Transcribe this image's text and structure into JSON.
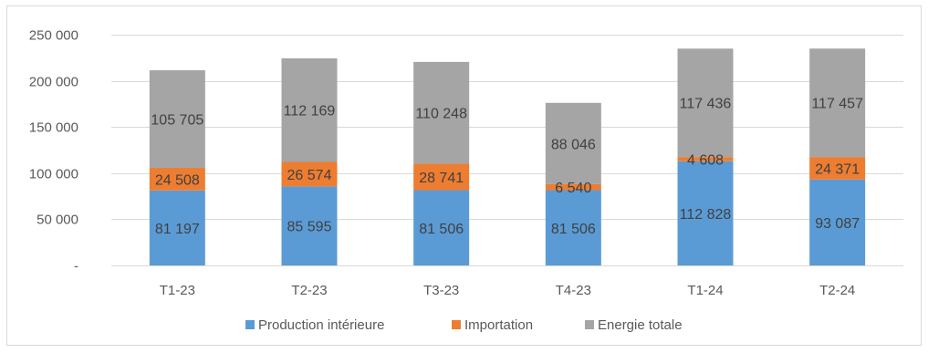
{
  "chart_data": {
    "type": "bar",
    "stacked": true,
    "categories": [
      "T1-23",
      "T2-23",
      "T3-23",
      "T4-23",
      "T1-24",
      "T2-24"
    ],
    "series": [
      {
        "name": "Production intérieure",
        "color": "#5b9bd5",
        "values": [
          81197,
          85595,
          81506,
          81506,
          112828,
          93087
        ],
        "labels": [
          "81 197",
          "85 595",
          "81 506",
          "81 506",
          "112 828",
          "93 087"
        ]
      },
      {
        "name": "Importation",
        "color": "#ed7d31",
        "values": [
          24508,
          26574,
          28741,
          6540,
          4608,
          24371
        ],
        "labels": [
          "24 508",
          "26 574",
          "28 741",
          "6 540",
          "4 608",
          "24 371"
        ]
      },
      {
        "name": "Energie totale",
        "color": "#a5a5a5",
        "values": [
          105705,
          112169,
          110248,
          88046,
          117436,
          117457
        ],
        "labels": [
          "105 705",
          "112 169",
          "110 248",
          "88 046",
          "117 436",
          "117 457"
        ]
      }
    ],
    "ylim": [
      0,
      250000
    ],
    "yticks": [
      {
        "value": 0,
        "label": "-"
      },
      {
        "value": 50000,
        "label": "50 000"
      },
      {
        "value": 100000,
        "label": "100 000"
      },
      {
        "value": 150000,
        "label": "150 000"
      },
      {
        "value": 200000,
        "label": "200 000"
      },
      {
        "value": 250000,
        "label": "250 000"
      }
    ],
    "grid": true,
    "gridColor": "#d9d9d9",
    "legend_position": "bottom"
  }
}
